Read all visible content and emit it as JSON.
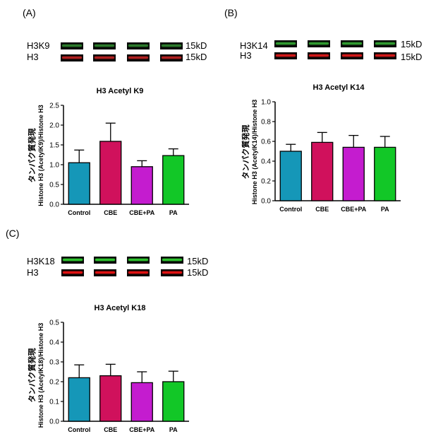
{
  "panels": [
    {
      "letter": "(A)",
      "blot": {
        "target_label": "H3K9",
        "control_label": "H3",
        "target_kd": "15kD",
        "control_kd": "15kD",
        "target_color": "#2b7a2b",
        "control_color": "#b02020"
      },
      "ylabel_jp": "タンパク質発現",
      "chart_data": {
        "type": "bar",
        "title": "H3 Acetyl K9",
        "ylabel": "Histone H3 (AcetylK9)/Histone H3",
        "categories": [
          "Control",
          "CBE",
          "CBE+PA",
          "PA"
        ],
        "values": [
          1.05,
          1.59,
          0.95,
          1.23
        ],
        "errors": [
          0.32,
          0.46,
          0.15,
          0.17
        ],
        "colors": [
          "#1597b8",
          "#d0115c",
          "#c41ccf",
          "#12c727"
        ],
        "ylim": [
          0,
          2.5
        ],
        "ticks": [
          "0.0",
          "0.5",
          "1.0",
          "1.5",
          "2.0",
          "2.5"
        ]
      }
    },
    {
      "letter": "(B)",
      "blot": {
        "target_label": "H3K14",
        "control_label": "H3",
        "target_kd": "15kD",
        "control_kd": "15kD",
        "target_color": "#2f9a2f",
        "control_color": "#d01818"
      },
      "ylabel_jp": "タンパク質発現",
      "chart_data": {
        "type": "bar",
        "title": "H3 Acetyl K14",
        "ylabel": "Histone H3 (AcetylK14)/Histone H3",
        "categories": [
          "Control",
          "CBE",
          "CBE+PA",
          "PA"
        ],
        "values": [
          0.5,
          0.59,
          0.54,
          0.54
        ],
        "errors": [
          0.07,
          0.1,
          0.12,
          0.11
        ],
        "colors": [
          "#1597b8",
          "#d0115c",
          "#c41ccf",
          "#12c727"
        ],
        "ylim": [
          0,
          1.0
        ],
        "ticks": [
          "0.0",
          "0.2",
          "0.4",
          "0.6",
          "0.8",
          "1.0"
        ]
      }
    },
    {
      "letter": "(C)",
      "blot": {
        "target_label": "H3K18",
        "control_label": "H3",
        "target_kd": "15kD",
        "control_kd": "15kD",
        "target_color": "#2ec22e",
        "control_color": "#e01212"
      },
      "ylabel_jp": "タンパク質発現",
      "chart_data": {
        "type": "bar",
        "title": "H3 Acetyl K18",
        "ylabel": "Histone H3 (AcetylK18)/Histone H3",
        "categories": [
          "Control",
          "CBE",
          "CBE+PA",
          "PA"
        ],
        "values": [
          0.22,
          0.23,
          0.195,
          0.2
        ],
        "errors": [
          0.065,
          0.058,
          0.055,
          0.053
        ],
        "colors": [
          "#1597b8",
          "#d0115c",
          "#c41ccf",
          "#12c727"
        ],
        "ylim": [
          0,
          0.5
        ],
        "ticks": [
          "0.0",
          "0.1",
          "0.2",
          "0.3",
          "0.4",
          "0.5"
        ]
      }
    }
  ]
}
